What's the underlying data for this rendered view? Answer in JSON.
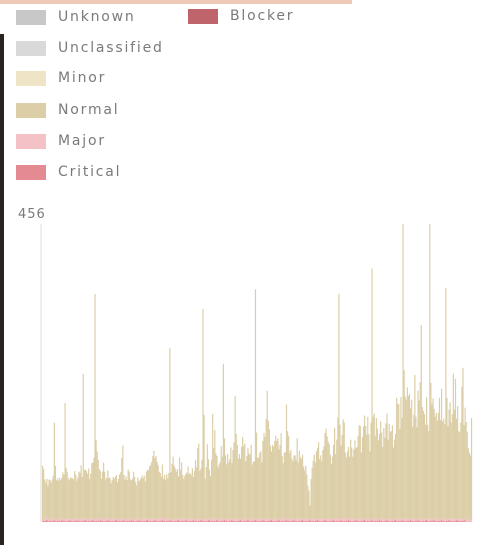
{
  "legend": {
    "items": [
      {
        "label": "Unknown",
        "color": "#c8c8c8"
      },
      {
        "label": "Unclassified",
        "color": "#d9d9d9"
      },
      {
        "label": "Minor",
        "color": "#efe5c6"
      },
      {
        "label": "Normal",
        "color": "#dccfa8"
      },
      {
        "label": "Major",
        "color": "#f4c2c6"
      },
      {
        "label": "Critical",
        "color": "#e48a92"
      },
      {
        "label": "Blocker",
        "color": "#c0646c"
      }
    ]
  },
  "chart_data": {
    "type": "bar",
    "stacked": true,
    "ymax_label": "456",
    "ylim": [
      0,
      456
    ],
    "legend_position": "top",
    "series": [
      {
        "name": "Normal",
        "color": "#dccfa8",
        "values": [
          82,
          75,
          62,
          55,
          58,
          51,
          62,
          58,
          56,
          60,
          68,
          145,
          82,
          61,
          62,
          58,
          63,
          61,
          59,
          72,
          66,
          178,
          80,
          72,
          62,
          58,
          64,
          63,
          62,
          61,
          71,
          68,
          58,
          63,
          72,
          71,
          82,
          65,
          222,
          75,
          72,
          73,
          70,
          78,
          62,
          68,
          86,
          85,
          95,
          344,
          118,
          104,
          90,
          78,
          71,
          62,
          71,
          87,
          73,
          61,
          62,
          73,
          62,
          63,
          56,
          60,
          63,
          62,
          62,
          66,
          58,
          61,
          68,
          72,
          94,
          112,
          66,
          62,
          64,
          58,
          76,
          72,
          62,
          57,
          62,
          72,
          64,
          58,
          51,
          62,
          56,
          59,
          62,
          68,
          63,
          65,
          58,
          72,
          75,
          73,
          80,
          82,
          88,
          97,
          104,
          92,
          96,
          88,
          82,
          74,
          68,
          65,
          81,
          62,
          68,
          60,
          68,
          62,
          69,
          260,
          73,
          83,
          96,
          82,
          78,
          72,
          76,
          65,
          93,
          75,
          86,
          68,
          62,
          66,
          68,
          72,
          80,
          69,
          71,
          65,
          78,
          62,
          74,
          91,
          80,
          108,
          115,
          74,
          77,
          89,
          320,
          160,
          62,
          80,
          114,
          91,
          73,
          66,
          91,
          161,
          107,
          136,
          100,
          95,
          80,
          84,
          86,
          112,
          93,
          238,
          123,
          97,
          83,
          100,
          88,
          90,
          110,
          85,
          104,
          116,
          189,
          131,
          114,
          92,
          99,
          91,
          110,
          127,
          111,
          114,
          88,
          96,
          107,
          102,
          99,
          112,
          84,
          87,
          90,
          348,
          132,
          93,
          95,
          103,
          102,
          87,
          117,
          132,
          125,
          155,
          195,
          150,
          137,
          112,
          103,
          114,
          110,
          119,
          126,
          119,
          125,
          104,
          114,
          132,
          97,
          85,
          101,
          104,
          172,
          134,
          127,
          102,
          107,
          91,
          89,
          96,
          97,
          91,
          124,
          85,
          104,
          94,
          92,
          98,
          81,
          74,
          81,
          69,
          52,
          42,
          18,
          62,
          79,
          90,
          98,
          86,
          103,
          107,
          118,
          92,
          96,
          89,
          104,
          112,
          131,
          139,
          125,
          119,
          113,
          98,
          86,
          94,
          112,
          140,
          101,
          120,
          156,
          345,
          143,
          110,
          129,
          153,
          148,
          101,
          94,
          104,
          108,
          97,
          121,
          108,
          96,
          105,
          121,
          108,
          111,
          126,
          144,
          143,
          102,
          124,
          140,
          157,
          143,
          131,
          155,
          130,
          102,
          148,
          382,
          158,
          160,
          127,
          154,
          138,
          122,
          129,
          149,
          132,
          109,
          140,
          125,
          146,
          160,
          122,
          146,
          133,
          135,
          144,
          108,
          120,
          129,
          186,
          178,
          174,
          138,
          186,
          154,
          472,
          228,
          186,
          182,
          201,
          188,
          193,
          168,
          182,
          141,
          160,
          222,
          154,
          140,
          195,
          182,
          210,
          296,
          172,
          164,
          161,
          144,
          186,
          143,
          135,
          466,
          209,
          176,
          185,
          166,
          157,
          161,
          150,
          164,
          184,
          152,
          198,
          151,
          152,
          146,
          355,
          183,
          142,
          166,
          179,
          148,
          160,
          223,
          167,
          214,
          154,
          171,
          133,
          134,
          146,
          203,
          232,
          144,
          168,
          150,
          135,
          111,
          101,
          98,
          156
        ]
      },
      {
        "name": "Major",
        "color": "#f4c2c6",
        "values": [
          3,
          4,
          2,
          3,
          5,
          3,
          2,
          4,
          3,
          3,
          2,
          4,
          3,
          2,
          3,
          4,
          3,
          2,
          5,
          3,
          4,
          3,
          2,
          3,
          4,
          3,
          3,
          2,
          4,
          3,
          5,
          3,
          2,
          4,
          3,
          3,
          4,
          2,
          3,
          3,
          5,
          4,
          3,
          2,
          3,
          4,
          3,
          3,
          2,
          4,
          5,
          3,
          3,
          2,
          4,
          3,
          4,
          3,
          3,
          2,
          5,
          3,
          4,
          3,
          2,
          3,
          4,
          3,
          5,
          3,
          2,
          4,
          3,
          3,
          2,
          4,
          3,
          2,
          5,
          4,
          3,
          3,
          2,
          4,
          3,
          3,
          4,
          2,
          3,
          5,
          3,
          4,
          3,
          2,
          3,
          4,
          3,
          3,
          2,
          5,
          4,
          3,
          3,
          2,
          4,
          3,
          4,
          3,
          3,
          2,
          5,
          3,
          4,
          3,
          2,
          3,
          4,
          3,
          5,
          3,
          2,
          4,
          3,
          3,
          2,
          4,
          3,
          2,
          5,
          4,
          3,
          3,
          2,
          4,
          3,
          3,
          4,
          2,
          3,
          5,
          3,
          4,
          3,
          2,
          3,
          4,
          3,
          3,
          2,
          5,
          4,
          3,
          3,
          2,
          4,
          3,
          4,
          3,
          3,
          2,
          5,
          3,
          4,
          3,
          2,
          3,
          4,
          3,
          5,
          3,
          2,
          4,
          3,
          3,
          2,
          4,
          3,
          2,
          5,
          4,
          3,
          3,
          2,
          4,
          3,
          3,
          4,
          2,
          3,
          5,
          3,
          4,
          3,
          2,
          3,
          4,
          3,
          3,
          2,
          5,
          4,
          3,
          3,
          2,
          4,
          3,
          4,
          3,
          3,
          2,
          5,
          3,
          4,
          3,
          2,
          3,
          4,
          3,
          5,
          3,
          2,
          4,
          3,
          3,
          2,
          4,
          3,
          2,
          5,
          4,
          3,
          3,
          2,
          4,
          3,
          3,
          4,
          2,
          3,
          5,
          3,
          4,
          3,
          2,
          3,
          4,
          3,
          3,
          2,
          5,
          4,
          3,
          3,
          2,
          4,
          3,
          4,
          3,
          3,
          2,
          5,
          3,
          4,
          3,
          2,
          3,
          4,
          3,
          5,
          3,
          2,
          4,
          3,
          3,
          2,
          4,
          3,
          2,
          5,
          4,
          3,
          3,
          2,
          4,
          3,
          3,
          4,
          2,
          3,
          5,
          3,
          4,
          3,
          2,
          3,
          4,
          3,
          3,
          2,
          5,
          4,
          3,
          3,
          2,
          4,
          3,
          4,
          3,
          3,
          2,
          5,
          3,
          4,
          3,
          2,
          3,
          4,
          3,
          5,
          3,
          2,
          4,
          3,
          3,
          2,
          4,
          3,
          2,
          5,
          4,
          3,
          3,
          2,
          4,
          3,
          3,
          4,
          2,
          3,
          5,
          3,
          4,
          3,
          2,
          3,
          4,
          3,
          3,
          2,
          5,
          4,
          3,
          3,
          2,
          4,
          3,
          4,
          3,
          3,
          2,
          5,
          3,
          4,
          3,
          2,
          3,
          4,
          3,
          5,
          3,
          2,
          4,
          3,
          3,
          2,
          4,
          3,
          2,
          5,
          4,
          3,
          3,
          2,
          4,
          3,
          3,
          4,
          2,
          3,
          5,
          3,
          4,
          3,
          2,
          3,
          4,
          3,
          3,
          2,
          5,
          4,
          3,
          3,
          2,
          4,
          3,
          4,
          3,
          3
        ]
      },
      {
        "name": "Critical",
        "color": "#e48a92",
        "values": [
          1,
          2,
          1,
          2,
          3,
          1,
          1,
          2,
          1,
          2,
          1,
          3,
          1,
          1,
          2,
          1,
          2,
          1,
          3,
          1,
          2,
          1,
          1,
          2,
          1,
          3,
          1,
          2,
          1,
          1,
          2,
          1,
          3,
          1,
          2,
          1,
          1,
          2,
          1,
          2,
          3,
          1,
          1,
          2,
          1,
          2,
          1,
          3,
          1,
          1,
          2,
          1,
          2,
          1,
          3,
          1,
          2,
          1,
          1,
          2,
          1,
          3,
          1,
          2,
          1,
          1,
          2,
          1,
          2,
          3,
          1,
          1,
          2,
          1,
          2,
          1,
          3,
          1,
          1,
          2,
          1,
          2,
          1,
          3,
          1,
          2,
          1,
          1,
          2,
          1,
          3,
          1,
          2,
          1,
          1,
          2,
          1,
          2,
          3,
          1,
          1,
          2,
          1,
          2,
          1,
          3,
          1,
          1,
          2,
          1,
          2,
          1,
          3,
          1,
          2,
          1,
          1,
          2,
          1,
          3,
          1,
          2,
          1,
          1,
          2,
          1,
          2,
          3,
          1,
          1,
          2,
          1,
          2,
          1,
          3,
          1,
          1,
          2,
          1,
          2,
          1,
          3,
          1,
          2,
          1,
          1,
          2,
          1,
          3,
          1,
          2,
          1,
          1,
          2,
          1,
          2,
          3,
          1,
          1,
          2,
          1,
          2,
          1,
          3,
          1,
          1,
          2,
          1,
          2,
          1,
          3,
          1,
          2,
          1,
          1,
          2,
          1,
          3,
          1,
          2,
          1,
          1,
          2,
          1,
          2,
          3,
          1,
          1,
          2,
          1,
          2,
          1,
          3,
          1,
          1,
          2,
          1,
          2,
          1,
          3,
          1,
          2,
          1,
          1,
          2,
          1,
          3,
          1,
          2,
          1,
          1,
          2,
          1,
          2,
          3,
          1,
          1,
          2,
          1,
          2,
          1,
          3,
          1,
          1,
          2,
          1,
          2,
          1,
          3,
          1,
          2,
          1,
          1,
          2,
          1,
          3,
          1,
          2,
          1,
          1,
          2,
          1,
          2,
          3,
          1,
          1,
          2,
          1,
          2,
          1,
          3,
          1,
          1,
          2,
          1,
          2,
          1,
          3,
          1,
          2,
          1,
          1,
          2,
          1,
          3,
          1,
          2,
          1,
          1,
          2,
          1,
          2,
          3,
          1,
          1,
          2,
          1,
          2,
          1,
          3,
          1,
          1,
          2,
          1,
          2,
          1,
          3,
          1,
          2,
          1,
          1,
          2,
          1,
          3,
          1,
          2,
          1,
          1,
          2,
          1,
          2,
          3,
          1,
          1,
          2,
          1,
          2,
          1,
          3,
          1,
          1,
          2,
          1,
          2,
          1,
          3,
          1,
          2,
          1,
          1,
          2,
          1,
          3,
          1,
          2,
          1,
          1,
          2,
          1,
          2,
          3,
          1,
          1,
          2,
          1,
          2,
          1,
          3,
          1,
          1,
          2,
          1,
          2,
          1,
          3,
          1,
          2,
          1,
          1,
          2,
          1,
          3,
          1,
          2,
          1,
          1,
          2,
          1,
          2,
          3,
          1,
          1,
          2,
          1,
          2,
          1,
          3,
          1,
          1,
          2,
          1,
          2,
          1,
          3,
          1,
          2,
          1,
          1,
          2,
          1,
          3,
          1,
          2,
          1,
          1,
          2,
          1,
          2,
          3,
          1,
          1,
          2,
          1,
          2,
          1,
          3
        ]
      }
    ]
  }
}
